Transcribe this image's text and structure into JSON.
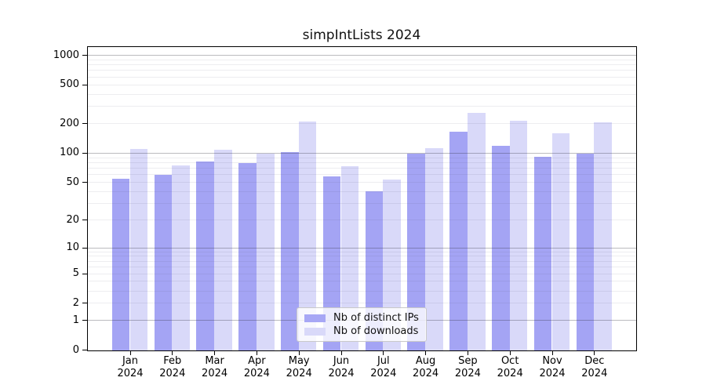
{
  "chart_data": {
    "type": "bar",
    "title": "simpIntLists 2024",
    "x_year": "2024",
    "months": [
      "Jan",
      "Feb",
      "Mar",
      "Apr",
      "May",
      "Jun",
      "Jul",
      "Aug",
      "Sep",
      "Oct",
      "Nov",
      "Dec"
    ],
    "categories": [
      "Jan 2024",
      "Feb 2024",
      "Mar 2024",
      "Apr 2024",
      "May 2024",
      "Jun 2024",
      "Jul 2024",
      "Aug 2024",
      "Sep 2024",
      "Oct 2024",
      "Nov 2024",
      "Dec 2024"
    ],
    "series": [
      {
        "name": "Nb of distinct IPs",
        "color": "#a7a7f5",
        "values": [
          55,
          60,
          83,
          80,
          104,
          58,
          41,
          100,
          168,
          120,
          92,
          100
        ]
      },
      {
        "name": "Nb of downloads",
        "color": "#d9d9f9",
        "values": [
          112,
          76,
          110,
          99,
          215,
          74,
          54,
          113,
          260,
          218,
          162,
          210
        ]
      }
    ],
    "yscale": "log1p",
    "ylim": [
      0,
      1000
    ],
    "ytick_values": [
      0,
      1,
      2,
      5,
      10,
      20,
      50,
      100,
      200,
      500,
      1000
    ],
    "ytick_labels": [
      "0",
      "1",
      "2",
      "5",
      "10",
      "20",
      "50",
      "100",
      "200",
      "500",
      "1000"
    ],
    "grid": true,
    "legend_position": "lower-center-inside"
  },
  "legend": {
    "items": [
      {
        "label": "Nb of distinct IPs",
        "color": "#a7a7f5"
      },
      {
        "label": "Nb of downloads",
        "color": "#d9d9f9"
      }
    ]
  },
  "colors": {
    "bar_distinct_ips": "#a7a7f5",
    "bar_downloads": "#d9d9f9",
    "bar_distinct_ips_fill": "rgba(151,151,243,0.88)",
    "bar_downloads_fill": "rgba(212,212,248,0.88)",
    "grid_major": "#b3b3b8",
    "grid_minor": "#e9e9ee",
    "axis_spine": "#000000",
    "legend_border": "#c9c9c9",
    "background": "#ffffff"
  }
}
